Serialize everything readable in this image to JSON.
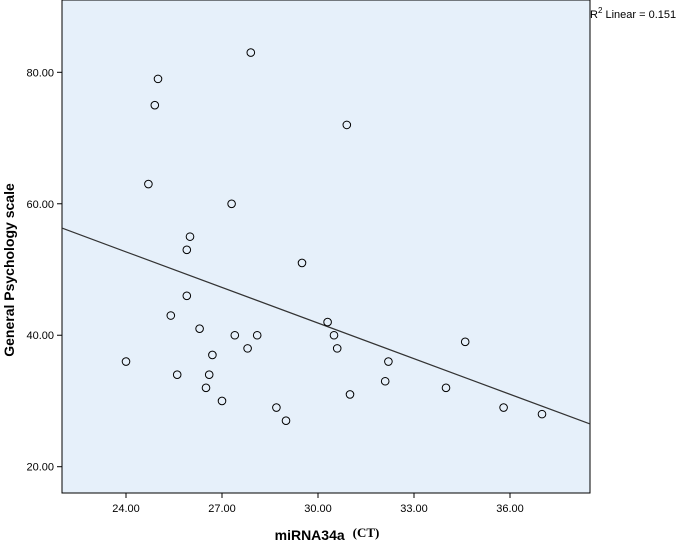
{
  "chart_data": {
    "type": "scatter",
    "title": "",
    "xlabel": "miRNA34a",
    "xlabel_unit": "(CT)",
    "ylabel": "General Psychology scale",
    "xlim": [
      22,
      38.5
    ],
    "ylim": [
      16,
      91
    ],
    "x_ticks": [
      24,
      27,
      30,
      33,
      36
    ],
    "x_tick_labels": [
      "24.00",
      "27.00",
      "30.00",
      "33.00",
      "36.00"
    ],
    "y_ticks": [
      20,
      40,
      60,
      80
    ],
    "y_tick_labels": [
      "20.00",
      "40.00",
      "60.00",
      "80.00"
    ],
    "grid": false,
    "background_color": "#e6f0fa",
    "marker_color": "#000000",
    "fit_line": {
      "label_prefix": "R",
      "label_superscript": "2",
      "label_suffix": " Linear = 0.151",
      "start": [
        22,
        56.3
      ],
      "end": [
        38.5,
        26.5
      ]
    },
    "points": [
      {
        "x": 24.0,
        "y": 36
      },
      {
        "x": 24.7,
        "y": 63
      },
      {
        "x": 24.9,
        "y": 75
      },
      {
        "x": 25.0,
        "y": 79
      },
      {
        "x": 25.4,
        "y": 43
      },
      {
        "x": 25.6,
        "y": 34
      },
      {
        "x": 25.9,
        "y": 53
      },
      {
        "x": 25.9,
        "y": 46
      },
      {
        "x": 26.0,
        "y": 55
      },
      {
        "x": 26.3,
        "y": 41
      },
      {
        "x": 26.5,
        "y": 32
      },
      {
        "x": 26.6,
        "y": 34
      },
      {
        "x": 26.7,
        "y": 37
      },
      {
        "x": 27.0,
        "y": 30
      },
      {
        "x": 27.3,
        "y": 60
      },
      {
        "x": 27.4,
        "y": 40
      },
      {
        "x": 27.8,
        "y": 38
      },
      {
        "x": 27.9,
        "y": 83
      },
      {
        "x": 28.1,
        "y": 40
      },
      {
        "x": 28.7,
        "y": 29
      },
      {
        "x": 29.0,
        "y": 27
      },
      {
        "x": 29.5,
        "y": 51
      },
      {
        "x": 30.3,
        "y": 42
      },
      {
        "x": 30.5,
        "y": 40
      },
      {
        "x": 30.6,
        "y": 38
      },
      {
        "x": 30.9,
        "y": 72
      },
      {
        "x": 31.0,
        "y": 31
      },
      {
        "x": 32.1,
        "y": 33
      },
      {
        "x": 32.2,
        "y": 36
      },
      {
        "x": 34.0,
        "y": 32
      },
      {
        "x": 34.6,
        "y": 39
      },
      {
        "x": 35.8,
        "y": 29
      },
      {
        "x": 37.0,
        "y": 28
      }
    ]
  }
}
